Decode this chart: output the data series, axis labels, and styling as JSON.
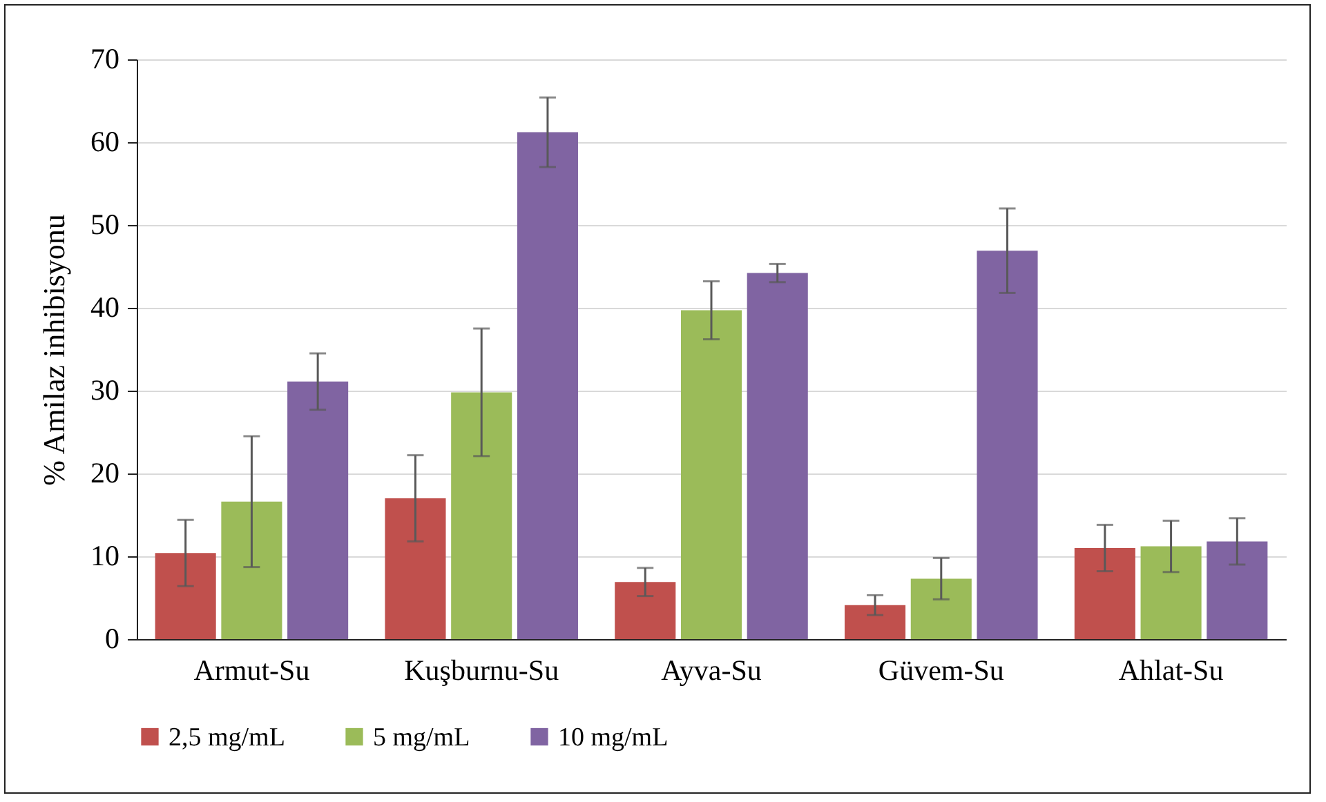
{
  "chart_data": {
    "type": "bar",
    "ylabel": "% Amilaz inhibisyonu",
    "categories": [
      "Armut-Su",
      "Kuşburnu-Su",
      "Ayva-Su",
      "Güvem-Su",
      "Ahlat-Su"
    ],
    "series": [
      {
        "name": "2,5 mg/mL",
        "color": "#c0504d",
        "values": [
          10.4,
          17.0,
          6.9,
          4.1,
          11.0
        ],
        "errors": [
          4.0,
          5.2,
          1.7,
          1.2,
          2.8
        ]
      },
      {
        "name": "5 mg/mL",
        "color": "#9bbb59",
        "values": [
          16.6,
          29.8,
          39.7,
          7.3,
          11.2
        ],
        "errors": [
          7.9,
          7.7,
          3.5,
          2.5,
          3.1
        ]
      },
      {
        "name": "10 mg/mL",
        "color": "#8064a2",
        "values": [
          31.1,
          61.2,
          44.2,
          46.9,
          11.8
        ],
        "errors": [
          3.4,
          4.2,
          1.1,
          5.1,
          2.8
        ]
      }
    ],
    "ylim": [
      0,
      70
    ],
    "yticks": [
      0,
      10,
      20,
      30,
      40,
      50,
      60,
      70
    ],
    "grid": "y",
    "legend": "bottom"
  }
}
